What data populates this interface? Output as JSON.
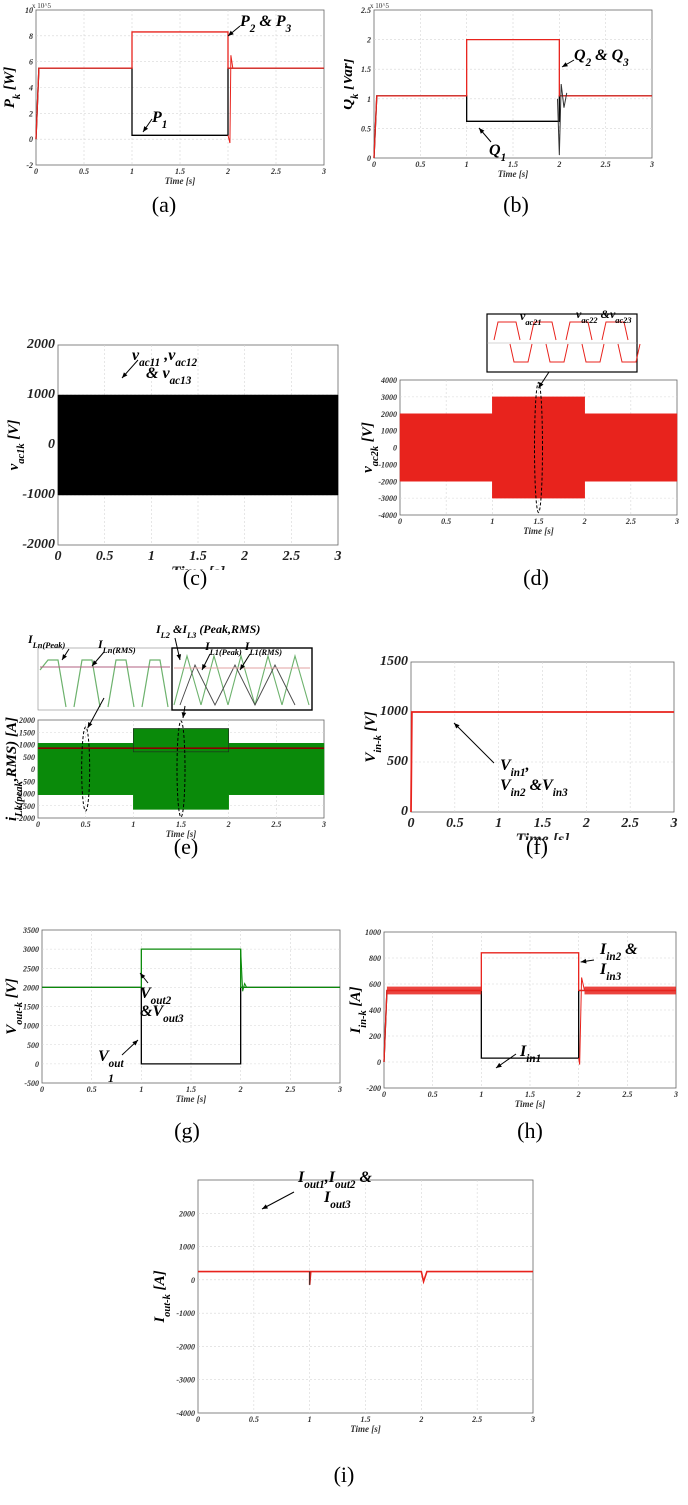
{
  "captions": [
    "(a)",
    "(b)",
    "(c)",
    "(d)",
    "(e)",
    "(f)",
    "(g)",
    "(h)",
    "(i)"
  ],
  "colors": {
    "red": "#e8231d",
    "black": "#000000",
    "green": "#0a8a0a",
    "darkred": "#8b0000"
  },
  "chart_data": [
    {
      "id": "a",
      "type": "line",
      "ylabel": "P_k [W]",
      "xlabel": "Time [s]",
      "y_scale_note": "x 10^5",
      "xlim": [
        0,
        3
      ],
      "ylim": [
        -2,
        10
      ],
      "xticks": [
        "0",
        "0.5",
        "1",
        "1.5",
        "2",
        "2.5",
        "3"
      ],
      "yticks": [
        "-2",
        "0",
        "2",
        "4",
        "6",
        "8",
        "10"
      ],
      "series": [
        {
          "name": "P_1",
          "color": "black",
          "x": [
            0,
            0.03,
            1,
            1,
            2,
            2,
            3
          ],
          "y": [
            0,
            5.5,
            5.5,
            0.3,
            0.3,
            5.5,
            5.5
          ]
        },
        {
          "name": "P_2 & P_3",
          "color": "red",
          "x": [
            0,
            0.03,
            1,
            1,
            2,
            2,
            3
          ],
          "y": [
            0,
            5.5,
            5.5,
            8.3,
            8.3,
            5.5,
            5.5
          ]
        }
      ],
      "annotations": [
        {
          "base": "P",
          "sub": "2",
          "mid": " & ",
          "base2": "P",
          "sub2": "3"
        },
        {
          "base": "P",
          "sub": "1"
        }
      ]
    },
    {
      "id": "b",
      "type": "line",
      "ylabel": "Q_k [Var]",
      "xlabel": "Time [s]",
      "y_scale_note": "x 10^5",
      "xlim": [
        0,
        3
      ],
      "ylim": [
        0,
        2.5
      ],
      "xticks": [
        "0",
        "0.5",
        "1",
        "1.5",
        "2",
        "2.5",
        "3"
      ],
      "yticks": [
        "0",
        "0.5",
        "1",
        "1.5",
        "2",
        "2.5"
      ],
      "series": [
        {
          "name": "Q_1",
          "color": "black",
          "x": [
            0,
            0.03,
            1,
            1,
            2,
            2,
            3
          ],
          "y": [
            0,
            1.05,
            1.05,
            0.62,
            0.62,
            1.05,
            1.05
          ]
        },
        {
          "name": "Q_2 & Q_3",
          "color": "red",
          "x": [
            0,
            0.03,
            1,
            1,
            2,
            2,
            3
          ],
          "y": [
            0,
            1.05,
            1.05,
            2.0,
            2.0,
            1.05,
            1.05
          ]
        }
      ],
      "annotations": [
        {
          "base": "Q",
          "sub": "2",
          "mid": " & ",
          "base2": "Q",
          "sub2": "3"
        },
        {
          "base": "Q",
          "sub": "1"
        }
      ]
    },
    {
      "id": "c",
      "type": "area",
      "ylabel": "v_ac1k [V]",
      "xlabel": "Time [s]",
      "xlim": [
        0,
        3
      ],
      "ylim": [
        -2000,
        2000
      ],
      "xticks": [
        "0",
        "0.5",
        "1",
        "1.5",
        "2",
        "2.5",
        "3"
      ],
      "yticks": [
        "2000",
        "1000",
        "0",
        "-1000",
        "-2000"
      ],
      "envelope": {
        "x": [
          0,
          3
        ],
        "upper": [
          1000,
          1000
        ],
        "lower": [
          -1000,
          -1000
        ],
        "color": "black"
      },
      "annotation": "v_ac11, v_ac12 & v_ac13"
    },
    {
      "id": "d",
      "type": "area",
      "ylabel": "v_ac2k [V]",
      "xlabel": "Time [s]",
      "xlim": [
        0,
        3
      ],
      "ylim": [
        -4000,
        4000
      ],
      "xticks": [
        "0",
        "0.5",
        "1",
        "1.5",
        "2",
        "2.5",
        "3"
      ],
      "yticks": [
        "4000",
        "3000",
        "2000",
        "1000",
        "0",
        "-1000",
        "-2000",
        "-3000",
        "-4000"
      ],
      "envelope": {
        "x": [
          0,
          1,
          1,
          2,
          2,
          3
        ],
        "upper": [
          2000,
          2000,
          3000,
          3000,
          2000,
          2000
        ],
        "lower": [
          -2000,
          -2000,
          -3000,
          -3000,
          -2000,
          -2000
        ],
        "color": "red"
      },
      "annotations": [
        "v_ac21",
        "v_ac22 & v_ac23"
      ]
    },
    {
      "id": "e",
      "type": "area",
      "ylabel": "i_Lk(peak,RMS) [A]",
      "xlabel": "Time [s]",
      "xlim": [
        0,
        3
      ],
      "ylim": [
        -2000,
        2000
      ],
      "xticks": [
        "0",
        "0.5",
        "1",
        "1.5",
        "2",
        "2.5",
        "3"
      ],
      "yticks": [
        "2000",
        "1500",
        "1000",
        "500",
        "0",
        "-500",
        "-1000",
        "-1500",
        "-2000"
      ],
      "envelope": {
        "x": [
          0,
          1,
          1,
          2,
          2,
          3
        ],
        "upper": [
          1050,
          1050,
          1650,
          1650,
          1050,
          1050
        ],
        "lower": [
          -1050,
          -1050,
          -1650,
          -1650,
          -1050,
          -1050
        ],
        "color": "green"
      },
      "rms": {
        "x": [
          0,
          3
        ],
        "y": [
          850,
          850
        ],
        "color": "darkred"
      },
      "annotations": [
        "I_Ln(Peak)",
        "I_Ln(RMS)",
        "I_L2 & I_L3 (Peak,RMS)",
        "I_L1(Peak)",
        "I_L1(RMS)"
      ]
    },
    {
      "id": "f",
      "type": "line",
      "ylabel": "V_in-k [V]",
      "xlabel": "Time [s]",
      "xlim": [
        0,
        3
      ],
      "ylim": [
        0,
        1500
      ],
      "xticks": [
        "0",
        "0.5",
        "1",
        "1.5",
        "2",
        "2.5",
        "3"
      ],
      "yticks": [
        "1500",
        "1000",
        "500",
        "0"
      ],
      "series": [
        {
          "name": "V_in1, V_in2 & V_in3",
          "color": "red",
          "x": [
            0,
            0.01,
            3
          ],
          "y": [
            0,
            1000,
            1000
          ]
        }
      ],
      "annotation_lines": [
        "V_in1,",
        "V_in2 &V_in3"
      ]
    },
    {
      "id": "g",
      "type": "line",
      "ylabel": "V_out-k [V]",
      "xlabel": "Time [s]",
      "xlim": [
        0,
        3
      ],
      "ylim": [
        -500,
        3500
      ],
      "xticks": [
        "0",
        "0.5",
        "1",
        "1.5",
        "2",
        "2.5",
        "3"
      ],
      "yticks": [
        "3500",
        "3000",
        "2500",
        "2000",
        "1500",
        "1000",
        "500",
        "0",
        "-500"
      ],
      "series": [
        {
          "name": "V_out1",
          "color": "black",
          "x": [
            0,
            1,
            1,
            2,
            2,
            3
          ],
          "y": [
            2000,
            2000,
            0,
            0,
            2000,
            2000
          ]
        },
        {
          "name": "V_out2 & V_out3",
          "color": "green",
          "x": [
            0,
            1,
            1,
            2,
            2,
            3
          ],
          "y": [
            2000,
            2000,
            3000,
            3000,
            2000,
            2000
          ]
        }
      ],
      "annotation_lines": [
        "V_out2",
        "&V_out3",
        "V_out",
        "1"
      ]
    },
    {
      "id": "h",
      "type": "line",
      "ylabel": "I_in-k [A]",
      "xlabel": "Time [s]",
      "xlim": [
        0,
        3
      ],
      "ylim": [
        -200,
        1000
      ],
      "xticks": [
        "0",
        "0.5",
        "1",
        "1.5",
        "2",
        "2.5",
        "3"
      ],
      "yticks": [
        "1000",
        "800",
        "600",
        "400",
        "200",
        "0",
        "-200"
      ],
      "series": [
        {
          "name": "I_in1",
          "color": "black",
          "x": [
            0,
            0.03,
            1,
            1,
            2,
            2,
            3
          ],
          "y": [
            0,
            550,
            550,
            30,
            30,
            550,
            550
          ]
        },
        {
          "name": "I_in2 & I_in3",
          "color": "red",
          "x": [
            0,
            0.03,
            1,
            1,
            2,
            2,
            3
          ],
          "y": [
            0,
            550,
            550,
            840,
            840,
            550,
            550
          ]
        }
      ],
      "annotation_lines": [
        "I_in2 &",
        "I_in3",
        "I_in1"
      ]
    },
    {
      "id": "i",
      "type": "line",
      "ylabel": "I_out-k [A]",
      "xlabel": "Time [s]",
      "xlim": [
        0,
        3
      ],
      "ylim": [
        -4000,
        3000
      ],
      "xticks": [
        "0",
        "0.5",
        "1",
        "1.5",
        "2",
        "2.5",
        "3"
      ],
      "yticks": [
        "2000",
        "1000",
        "0",
        "-1000",
        "-2000",
        "-3000",
        "-4000"
      ],
      "series": [
        {
          "name": "I_out1, I_out2 & I_out3",
          "color": "red",
          "x": [
            0,
            1,
            1,
            1.01,
            2,
            2.02,
            2.05,
            3
          ],
          "y": [
            250,
            250,
            -150,
            250,
            250,
            -50,
            250,
            250
          ]
        }
      ],
      "annotation_lines": [
        "I_out1,I_out2 &",
        "I_out3"
      ]
    }
  ]
}
